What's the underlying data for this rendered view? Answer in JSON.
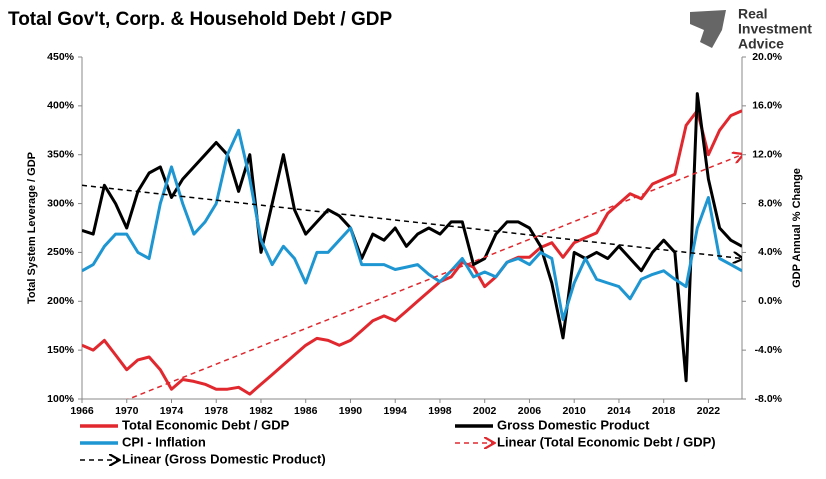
{
  "chart_data": {
    "type": "line",
    "title": "Total Gov't, Corp. & Household Debt / GDP",
    "logo": [
      "Real",
      "Investment",
      "Advice"
    ],
    "ylabel": "Total System Leverage / GDP",
    "y2label": "GDP Annual % Change",
    "xlim": [
      1966,
      2025
    ],
    "xticks": [
      1966,
      1970,
      1974,
      1978,
      1982,
      1986,
      1990,
      1994,
      1998,
      2002,
      2006,
      2010,
      2014,
      2018,
      2022
    ],
    "ylim": [
      100,
      450
    ],
    "yticks": [
      {
        "value": 100,
        "label": "100%"
      },
      {
        "value": 150,
        "label": "150%"
      },
      {
        "value": 200,
        "label": "200%"
      },
      {
        "value": 250,
        "label": "250%"
      },
      {
        "value": 300,
        "label": "300%"
      },
      {
        "value": 350,
        "label": "350%"
      },
      {
        "value": 400,
        "label": "400%"
      },
      {
        "value": 450,
        "label": "450%"
      }
    ],
    "y2lim": [
      -8,
      20
    ],
    "y2ticks": [
      {
        "value": -8,
        "label": "-8.0%"
      },
      {
        "value": -4,
        "label": "-4.0%"
      },
      {
        "value": 0,
        "label": "0.0%"
      },
      {
        "value": 4,
        "label": "4.0%"
      },
      {
        "value": 8,
        "label": "8.0%"
      },
      {
        "value": 12,
        "label": "12.0%"
      },
      {
        "value": 16,
        "label": "16.0%"
      },
      {
        "value": 20,
        "label": "20.0%"
      }
    ],
    "grid": false,
    "series": [
      {
        "name": "Total Economic Debt / GDP",
        "color": "#e0282e",
        "axis": "y",
        "dashed": false,
        "x": [
          1966,
          1967,
          1968,
          1969,
          1970,
          1971,
          1972,
          1973,
          1974,
          1975,
          1976,
          1977,
          1978,
          1979,
          1980,
          1981,
          1982,
          1983,
          1984,
          1985,
          1986,
          1987,
          1988,
          1989,
          1990,
          1991,
          1992,
          1993,
          1994,
          1995,
          1996,
          1997,
          1998,
          1999,
          2000,
          2001,
          2002,
          2003,
          2004,
          2005,
          2006,
          2007,
          2008,
          2009,
          2010,
          2011,
          2012,
          2013,
          2014,
          2015,
          2016,
          2017,
          2018,
          2019,
          2020,
          2021,
          2022,
          2023,
          2024,
          2025
        ],
        "values": [
          155,
          150,
          160,
          145,
          130,
          140,
          143,
          130,
          110,
          120,
          118,
          115,
          110,
          110,
          112,
          105,
          115,
          125,
          135,
          145,
          155,
          162,
          160,
          155,
          160,
          170,
          180,
          185,
          180,
          190,
          200,
          210,
          220,
          225,
          240,
          235,
          215,
          225,
          240,
          245,
          245,
          255,
          260,
          245,
          260,
          265,
          270,
          290,
          300,
          310,
          305,
          320,
          325,
          330,
          380,
          395,
          350,
          375,
          390,
          395
        ]
      },
      {
        "name": "Gross Domestic Product",
        "color": "#000000",
        "axis": "y2",
        "dashed": false,
        "x": [
          1966,
          1967,
          1968,
          1969,
          1970,
          1971,
          1972,
          1973,
          1974,
          1975,
          1976,
          1977,
          1978,
          1979,
          1980,
          1981,
          1982,
          1983,
          1984,
          1985,
          1986,
          1987,
          1988,
          1989,
          1990,
          1991,
          1992,
          1993,
          1994,
          1995,
          1996,
          1997,
          1998,
          1999,
          2000,
          2001,
          2002,
          2003,
          2004,
          2005,
          2006,
          2007,
          2008,
          2009,
          2010,
          2011,
          2012,
          2013,
          2014,
          2015,
          2016,
          2017,
          2018,
          2019,
          2020,
          2021,
          2022,
          2023,
          2024,
          2025
        ],
        "values": [
          5.8,
          5.5,
          9.5,
          8,
          6,
          9,
          10.5,
          11,
          8.5,
          10,
          11,
          12,
          13,
          12,
          9,
          12,
          4,
          8,
          12,
          7.5,
          5.5,
          6.5,
          7.5,
          7,
          6,
          3.5,
          5.5,
          5,
          6,
          4.5,
          5.5,
          6,
          5.5,
          6.5,
          6.5,
          3,
          3.5,
          5.5,
          6.5,
          6.5,
          6,
          4.5,
          1.5,
          -3,
          4,
          3.5,
          4,
          3.5,
          4.5,
          3.5,
          2.5,
          4,
          5,
          4,
          -6.5,
          17,
          10,
          6,
          5,
          4.5
        ]
      },
      {
        "name": "CPI - Inflation",
        "color": "#1e96d2",
        "axis": "y2",
        "dashed": false,
        "x": [
          1966,
          1967,
          1968,
          1969,
          1970,
          1971,
          1972,
          1973,
          1974,
          1975,
          1976,
          1977,
          1978,
          1979,
          1980,
          1981,
          1982,
          1983,
          1984,
          1985,
          1986,
          1987,
          1988,
          1989,
          1990,
          1991,
          1992,
          1993,
          1994,
          1995,
          1996,
          1997,
          1998,
          1999,
          2000,
          2001,
          2002,
          2003,
          2004,
          2005,
          2006,
          2007,
          2008,
          2009,
          2010,
          2011,
          2012,
          2013,
          2014,
          2015,
          2016,
          2017,
          2018,
          2019,
          2020,
          2021,
          2022,
          2023,
          2024,
          2025
        ],
        "values": [
          2.5,
          3,
          4.5,
          5.5,
          5.5,
          4,
          3.5,
          8,
          11,
          8,
          5.5,
          6.5,
          8,
          12,
          14,
          10,
          5,
          3,
          4.5,
          3.5,
          1.5,
          4,
          4,
          5,
          6,
          3,
          3,
          3,
          2.6,
          2.8,
          3,
          2.2,
          1.6,
          2.5,
          3.5,
          2,
          2.4,
          2,
          3.2,
          3.5,
          3,
          4,
          3.5,
          -1.5,
          1.5,
          3.5,
          1.8,
          1.5,
          1.2,
          0.2,
          1.8,
          2.2,
          2.5,
          1.8,
          1.2,
          6,
          8.5,
          3.5,
          3,
          2.5
        ]
      },
      {
        "name": "Linear (Gross Domestic Product)",
        "color": "#000000",
        "axis": "y2",
        "dashed": true,
        "x": [
          1966,
          2025
        ],
        "values": [
          9.5,
          3.5
        ]
      },
      {
        "name": "Linear (Total Economic Debt / GDP)",
        "color": "#e0282e",
        "axis": "y",
        "dashed": true,
        "x": [
          1966,
          2025
        ],
        "values": [
          81,
          350
        ]
      }
    ]
  }
}
